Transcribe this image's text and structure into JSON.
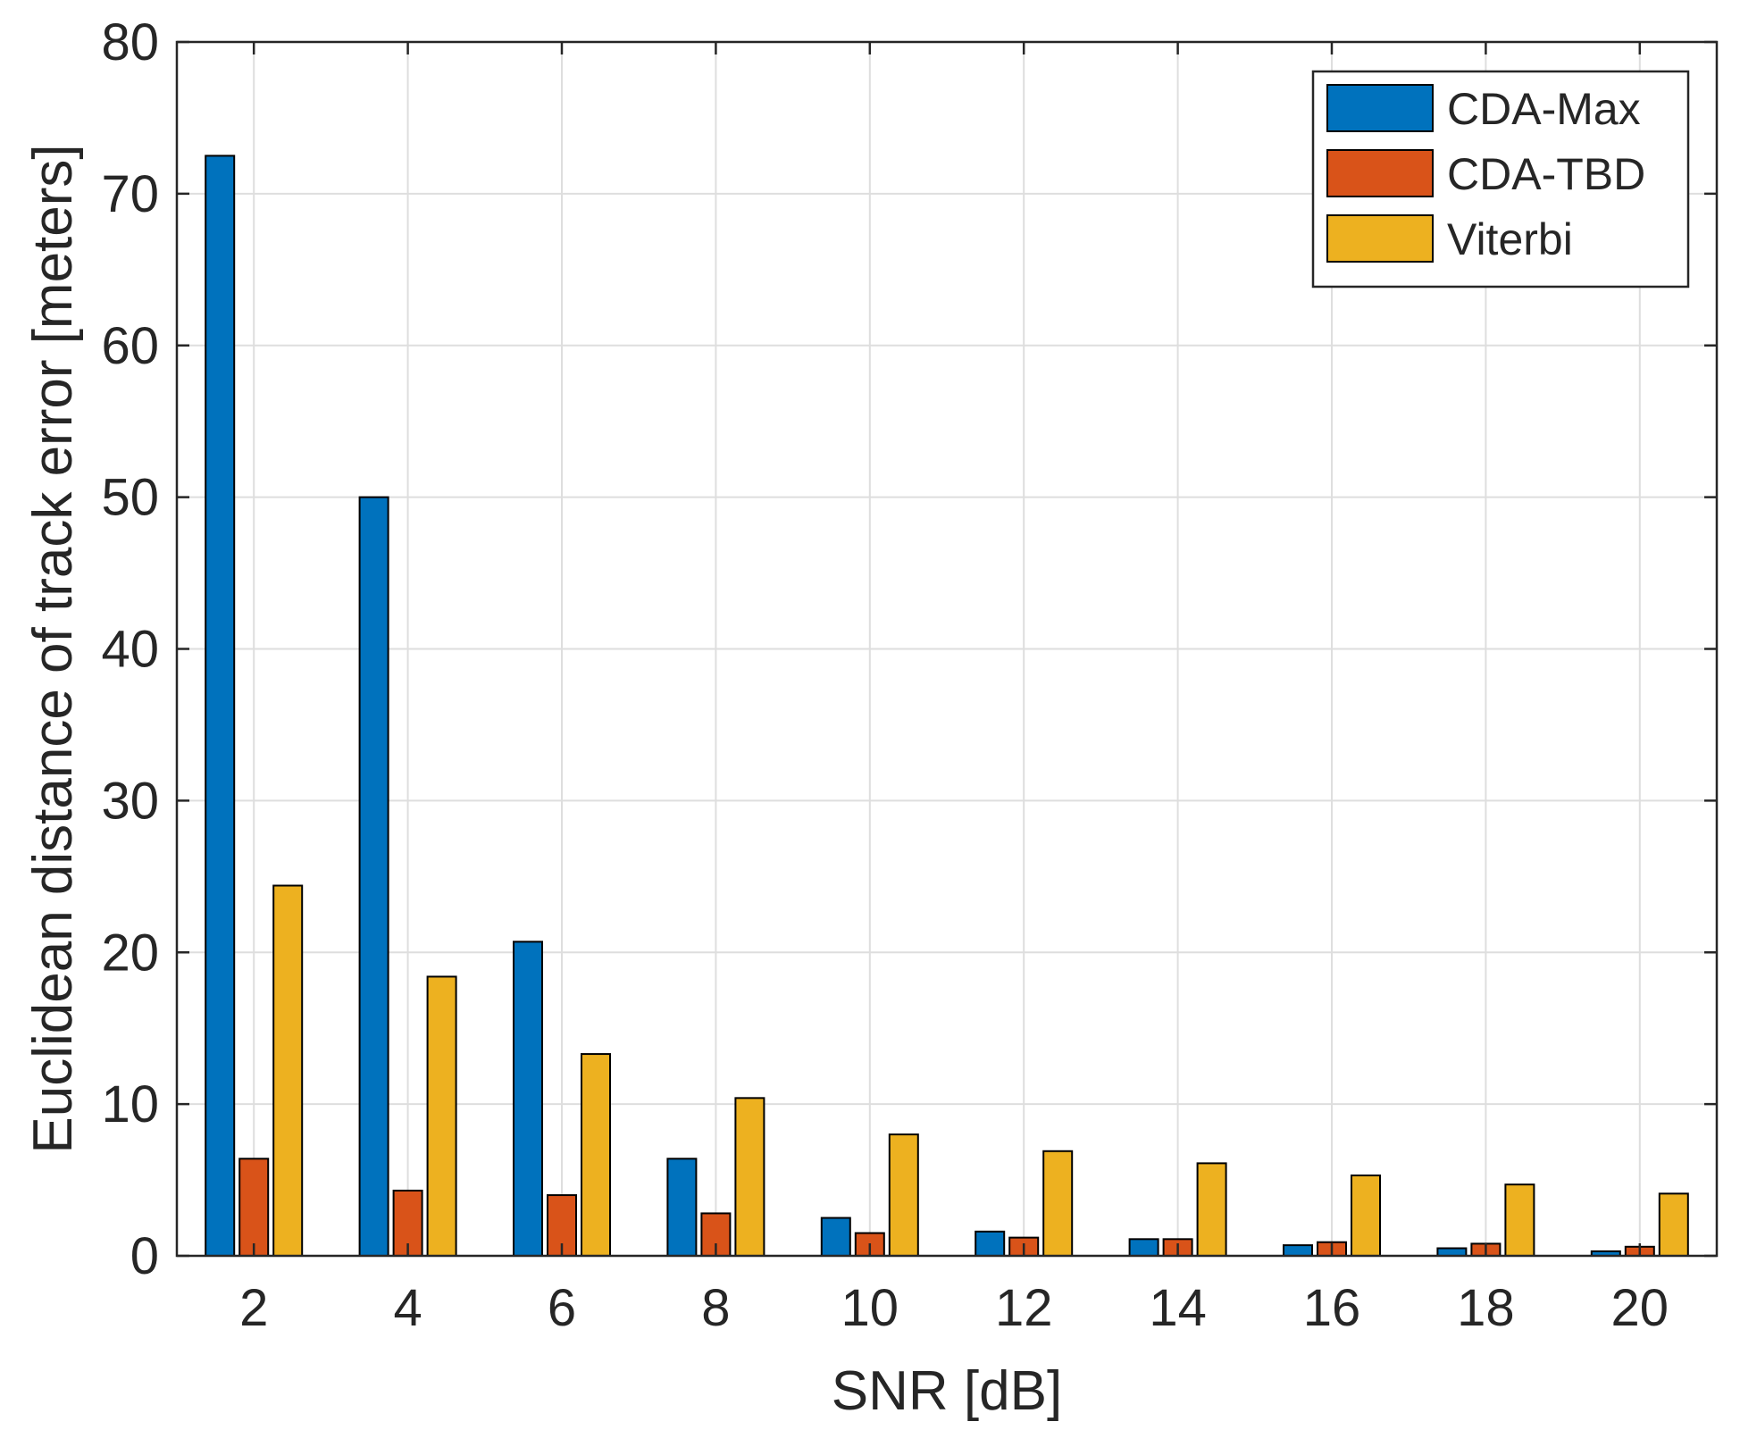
{
  "chart_data": {
    "type": "bar",
    "title": "",
    "xlabel": "SNR [dB]",
    "ylabel": "Euclidean distance of track error [meters]",
    "categories": [
      "2",
      "4",
      "6",
      "8",
      "10",
      "12",
      "14",
      "16",
      "18",
      "20"
    ],
    "ylim": [
      0,
      80
    ],
    "yticks": [
      0,
      10,
      20,
      30,
      40,
      50,
      60,
      70,
      80
    ],
    "grid": true,
    "legend_position": "top-right",
    "series": [
      {
        "name": "CDA-Max",
        "color": "#0072BD",
        "values": [
          72.5,
          50.0,
          20.7,
          6.4,
          2.5,
          1.6,
          1.1,
          0.7,
          0.5,
          0.3
        ]
      },
      {
        "name": "CDA-TBD",
        "color": "#D95319",
        "values": [
          6.4,
          4.3,
          4.0,
          2.8,
          1.5,
          1.2,
          1.1,
          0.9,
          0.8,
          0.6
        ]
      },
      {
        "name": "Viterbi",
        "color": "#EDB120",
        "values": [
          24.4,
          18.4,
          13.3,
          10.4,
          8.0,
          6.9,
          6.1,
          5.3,
          4.7,
          4.1
        ]
      }
    ]
  }
}
